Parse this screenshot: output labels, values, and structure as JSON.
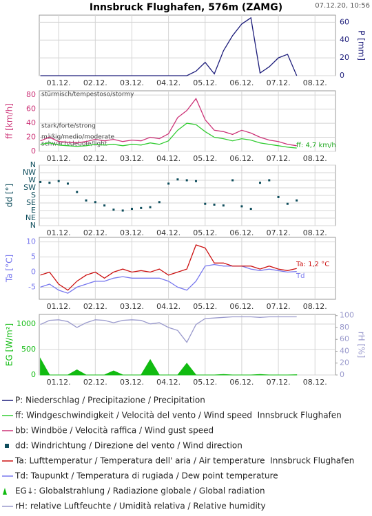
{
  "title": "Innsbruck Flughafen, 576m (ZAMG)",
  "timestamp": "07.12.20, 10:56",
  "chart_data": [
    {
      "type": "line",
      "x": [
        0.5,
        0.75,
        1,
        1.25,
        1.5,
        1.75,
        2,
        2.25,
        2.5,
        2.75,
        3,
        3.25,
        3.5,
        3.75,
        4,
        4.25,
        4.5,
        4.75,
        5,
        5.25,
        5.5,
        5.75,
        6,
        6.25,
        6.5,
        6.75,
        7,
        7.25,
        7.5
      ],
      "xlim": [
        0.47,
        8.56
      ],
      "xticks": [
        {
          "value": 1,
          "label": "01.12."
        },
        {
          "value": 2,
          "label": "02.12."
        },
        {
          "value": 3,
          "label": "03.12."
        },
        {
          "value": 4,
          "label": "04.12."
        },
        {
          "value": 5,
          "label": "05.12."
        },
        {
          "value": 6,
          "label": "06.12."
        },
        {
          "value": 7,
          "label": "07.12."
        },
        {
          "value": 8,
          "label": "08.12."
        }
      ],
      "y2label": "P [mm]",
      "y2lim": [
        0,
        68
      ],
      "y2ticks": [
        0,
        20,
        40,
        60
      ],
      "grid": true,
      "series": [
        {
          "name": "P: Niederschlag / Precipitazione / Precipitation",
          "color": "#1c1c7a",
          "axis": "y2",
          "values": [
            0,
            0,
            0,
            0,
            0,
            0,
            0,
            0,
            0,
            0,
            0,
            0,
            0,
            0,
            0,
            0,
            0,
            5,
            15,
            2,
            28,
            45,
            58,
            65,
            3,
            10,
            20,
            24,
            0
          ]
        }
      ]
    },
    {
      "type": "line",
      "x": [
        0.5,
        0.75,
        1,
        1.25,
        1.5,
        1.75,
        2,
        2.25,
        2.5,
        2.75,
        3,
        3.25,
        3.5,
        3.75,
        4,
        4.25,
        4.5,
        4.75,
        5,
        5.25,
        5.5,
        5.75,
        6,
        6.25,
        6.5,
        6.75,
        7,
        7.25,
        7.5
      ],
      "xlim": [
        0.47,
        8.56
      ],
      "xticks": [
        {
          "value": 1,
          "label": "01.12."
        },
        {
          "value": 2,
          "label": "02.12."
        },
        {
          "value": 3,
          "label": "03.12."
        },
        {
          "value": 4,
          "label": "04.12."
        },
        {
          "value": 5,
          "label": "05.12."
        },
        {
          "value": 6,
          "label": "06.12."
        },
        {
          "value": 7,
          "label": "07.12."
        },
        {
          "value": 8,
          "label": "08.12."
        }
      ],
      "ylabel": "ff [km/h]",
      "ylim": [
        0,
        86
      ],
      "yticks": [
        0,
        20,
        40,
        60,
        80
      ],
      "grid": true,
      "annotations": [
        "stürmisch/tempestoso/stormy",
        "stark/forte/strong",
        "mäßig/medio/moderate",
        "schwach/debole/light"
      ],
      "labels": [
        {
          "text": "ff: 4,7 km/h",
          "color": "#22aa22"
        }
      ],
      "series": [
        {
          "name": "bb: Windböe / Velocità raffica / Wind gust speed",
          "color": "#cc3377",
          "values": [
            15,
            20,
            14,
            13,
            12,
            14,
            17,
            15,
            17,
            14,
            16,
            15,
            20,
            18,
            25,
            48,
            58,
            75,
            45,
            30,
            28,
            24,
            30,
            26,
            20,
            16,
            14,
            10,
            8
          ]
        },
        {
          "name": "ff: Windgeschwindigkeit / Velocità del vento / Wind speed  Innsbruck Flughafen",
          "color": "#33cc33",
          "values": [
            10,
            12,
            9,
            8,
            7,
            8,
            10,
            9,
            10,
            8,
            10,
            9,
            12,
            10,
            15,
            30,
            40,
            38,
            28,
            20,
            18,
            15,
            18,
            16,
            12,
            10,
            8,
            6,
            4.7
          ]
        }
      ]
    },
    {
      "type": "scatter",
      "x": [
        0.5,
        0.75,
        1,
        1.25,
        1.5,
        1.75,
        2,
        2.25,
        2.5,
        2.75,
        3,
        3.25,
        3.5,
        3.75,
        4,
        4.25,
        4.5,
        4.75,
        5,
        5.25,
        5.5,
        5.75,
        6,
        6.25,
        6.5,
        6.75,
        7,
        7.25,
        7.5
      ],
      "xlim": [
        0.47,
        8.56
      ],
      "xticks": [
        {
          "value": 1,
          "label": "01.12."
        },
        {
          "value": 2,
          "label": "02.12."
        },
        {
          "value": 3,
          "label": "03.12."
        },
        {
          "value": 4,
          "label": "04.12."
        },
        {
          "value": 5,
          "label": "05.12."
        },
        {
          "value": 6,
          "label": "06.12."
        },
        {
          "value": 7,
          "label": "07.12."
        },
        {
          "value": 8,
          "label": "08.12."
        }
      ],
      "ylabel": "dd [°]",
      "ylim": [
        0,
        360
      ],
      "yticks": [
        {
          "value": 0,
          "label": "N"
        },
        {
          "value": 45,
          "label": "NE"
        },
        {
          "value": 90,
          "label": "E"
        },
        {
          "value": 135,
          "label": "SE"
        },
        {
          "value": 180,
          "label": "S"
        },
        {
          "value": 225,
          "label": "SW"
        },
        {
          "value": 270,
          "label": "W"
        },
        {
          "value": 315,
          "label": "NW"
        },
        {
          "value": 360,
          "label": "N"
        }
      ],
      "grid": true,
      "series": [
        {
          "name": "dd: Windrichtung / Direzione del vento / Wind direction",
          "color": "#0e4d5c",
          "values": [
            260,
            255,
            265,
            250,
            200,
            150,
            140,
            120,
            95,
            90,
            100,
            105,
            110,
            140,
            250,
            275,
            270,
            265,
            130,
            125,
            120,
            270,
            115,
            100,
            255,
            270,
            170,
            130,
            150
          ]
        }
      ]
    },
    {
      "type": "line",
      "x": [
        0.5,
        0.75,
        1,
        1.25,
        1.5,
        1.75,
        2,
        2.25,
        2.5,
        2.75,
        3,
        3.25,
        3.5,
        3.75,
        4,
        4.25,
        4.5,
        4.75,
        5,
        5.25,
        5.5,
        5.75,
        6,
        6.25,
        6.5,
        6.75,
        7,
        7.25,
        7.5
      ],
      "xlim": [
        0.47,
        8.56
      ],
      "xticks": [
        {
          "value": 1,
          "label": "01.12."
        },
        {
          "value": 2,
          "label": "02.12."
        },
        {
          "value": 3,
          "label": "03.12."
        },
        {
          "value": 4,
          "label": "04.12."
        },
        {
          "value": 5,
          "label": "05.12."
        },
        {
          "value": 6,
          "label": "06.12."
        },
        {
          "value": 7,
          "label": "07.12."
        },
        {
          "value": 8,
          "label": "08.12."
        }
      ],
      "ylabel": "Ta [°C]",
      "ylim": [
        -9,
        11.5
      ],
      "yticks": [
        -5,
        0,
        5,
        10
      ],
      "grid": true,
      "labels": [
        {
          "text": "Ta: 1,2 °C",
          "color": "#cc1111"
        },
        {
          "text": "Td",
          "color": "#7777ee"
        }
      ],
      "series": [
        {
          "name": "Td: Taupunkt / Temperatura di rugiada / Dew point temperature",
          "color": "#7777ee",
          "values": [
            -5,
            -4,
            -6,
            -7,
            -5,
            -4,
            -3,
            -3,
            -2,
            -1.5,
            -2,
            -2,
            -2,
            -2,
            -3,
            -5,
            -6,
            -3,
            2,
            2.5,
            2,
            2,
            2,
            1,
            0.5,
            1,
            0.5,
            0,
            0.2
          ]
        },
        {
          "name": "Ta: Lufttemperatur / Temperatura dell' aria / Air temperature  Innsbruck Flughafen",
          "color": "#cc1111",
          "values": [
            -1,
            0,
            -4,
            -6,
            -3,
            -1,
            0,
            -2,
            0,
            1,
            0,
            0.5,
            0,
            1,
            -1,
            0,
            1,
            9,
            8,
            3,
            3,
            2,
            2,
            2,
            1,
            2,
            1,
            0.5,
            1.2
          ]
        }
      ]
    },
    {
      "type": "area",
      "x": [
        0.5,
        0.75,
        1,
        1.25,
        1.5,
        1.75,
        2,
        2.25,
        2.5,
        2.75,
        3,
        3.25,
        3.5,
        3.75,
        4,
        4.25,
        4.5,
        4.75,
        5,
        5.25,
        5.5,
        5.75,
        6,
        6.25,
        6.5,
        6.75,
        7,
        7.25,
        7.5
      ],
      "xlim": [
        0.47,
        8.56
      ],
      "xticks": [
        {
          "value": 1,
          "label": "01.12."
        },
        {
          "value": 2,
          "label": "02.12."
        },
        {
          "value": 3,
          "label": "03.12."
        },
        {
          "value": 4,
          "label": "04.12."
        },
        {
          "value": 5,
          "label": "05.12."
        },
        {
          "value": 6,
          "label": "06.12."
        },
        {
          "value": 7,
          "label": "07.12."
        },
        {
          "value": 8,
          "label": "08.12."
        }
      ],
      "ylabel": "EG [W/m²]",
      "ylim": [
        0,
        1190
      ],
      "yticks": [
        0,
        500,
        1000
      ],
      "y2label": "rH [%]",
      "y2lim": [
        0,
        102
      ],
      "y2ticks": [
        0,
        20,
        40,
        60,
        80,
        100
      ],
      "grid": true,
      "series": [
        {
          "name": "EG↓: Globalstrahlung / Radiazione globale / Global radiation",
          "color": "#11bb11",
          "values": [
            320,
            0,
            0,
            0,
            100,
            0,
            0,
            0,
            80,
            0,
            0,
            0,
            300,
            0,
            0,
            0,
            230,
            0,
            0,
            0,
            10,
            0,
            0,
            0,
            10,
            0,
            0,
            0,
            5
          ]
        },
        {
          "name": "rH: relative Luftfeuchte / Umidità relativa / Relative humidity",
          "color": "#9999cc",
          "type": "line",
          "axis": "y2",
          "values": [
            85,
            92,
            93,
            90,
            80,
            88,
            93,
            92,
            88,
            92,
            93,
            92,
            86,
            88,
            80,
            75,
            55,
            85,
            95,
            96,
            97,
            98,
            98,
            98,
            97,
            98,
            98,
            98,
            98
          ]
        }
      ]
    }
  ]
}
